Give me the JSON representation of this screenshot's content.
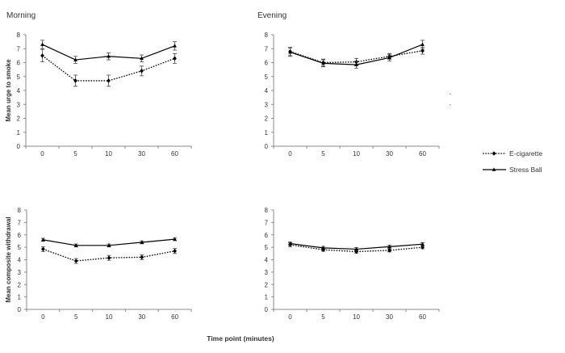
{
  "figure": {
    "xlabel": "Time point (minutes)"
  },
  "legend": {
    "items": [
      {
        "label": "E-cigarette",
        "style": "dotted",
        "marker": "diamond"
      },
      {
        "label": "Stress Ball",
        "style": "solid",
        "marker": "triangle"
      }
    ]
  },
  "colors": {
    "line": "#000000",
    "axis": "#8a8a8a",
    "text": "#333333"
  },
  "chart_data": [
    {
      "type": "line",
      "title": "Morning",
      "ylabel": "Mean urge to smoke",
      "ylim": [
        0,
        8
      ],
      "yticks": [
        0,
        1,
        2,
        3,
        4,
        5,
        6,
        7,
        8
      ],
      "categories": [
        "0",
        "5",
        "10",
        "30",
        "60"
      ],
      "series": [
        {
          "name": "E-cigarette",
          "values": [
            6.5,
            4.7,
            4.7,
            5.4,
            6.3
          ],
          "errors": [
            0.45,
            0.4,
            0.4,
            0.35,
            0.35
          ]
        },
        {
          "name": "Stress Ball",
          "values": [
            7.3,
            6.2,
            6.45,
            6.3,
            7.2
          ],
          "errors": [
            0.3,
            0.25,
            0.25,
            0.25,
            0.3
          ]
        }
      ]
    },
    {
      "type": "line",
      "title": "Evening",
      "ylabel": "",
      "ylim": [
        0,
        8
      ],
      "yticks": [
        0,
        1,
        2,
        3,
        4,
        5,
        6,
        7,
        8
      ],
      "categories": [
        "0",
        "5",
        "10",
        "30",
        "60"
      ],
      "series": [
        {
          "name": "E-cigarette",
          "values": [
            6.8,
            6.0,
            6.05,
            6.45,
            6.85
          ],
          "errors": [
            0.3,
            0.25,
            0.25,
            0.2,
            0.25
          ]
        },
        {
          "name": "Stress Ball",
          "values": [
            6.75,
            5.95,
            5.85,
            6.35,
            7.3
          ],
          "errors": [
            0.3,
            0.25,
            0.25,
            0.25,
            0.3
          ]
        }
      ]
    },
    {
      "type": "line",
      "title": "",
      "ylabel": "Mean composite withdrawal",
      "ylim": [
        0,
        8
      ],
      "yticks": [
        0,
        1,
        2,
        3,
        4,
        5,
        6,
        7,
        8
      ],
      "categories": [
        "0",
        "5",
        "10",
        "30",
        "60"
      ],
      "series": [
        {
          "name": "E-cigarette",
          "values": [
            4.85,
            3.9,
            4.15,
            4.2,
            4.7
          ],
          "errors": [
            0.2,
            0.2,
            0.2,
            0.2,
            0.2
          ]
        },
        {
          "name": "Stress Ball",
          "values": [
            5.6,
            5.15,
            5.15,
            5.4,
            5.65
          ],
          "errors": [
            0.12,
            0.12,
            0.12,
            0.12,
            0.12
          ]
        }
      ]
    },
    {
      "type": "line",
      "title": "",
      "ylabel": "",
      "ylim": [
        0,
        8
      ],
      "yticks": [
        0,
        1,
        2,
        3,
        4,
        5,
        6,
        7,
        8
      ],
      "categories": [
        "0",
        "5",
        "10",
        "30",
        "60"
      ],
      "series": [
        {
          "name": "E-cigarette",
          "values": [
            5.2,
            4.8,
            4.65,
            4.75,
            5.0
          ],
          "errors": [
            0.15,
            0.12,
            0.12,
            0.12,
            0.12
          ]
        },
        {
          "name": "Stress Ball",
          "values": [
            5.3,
            4.95,
            4.85,
            5.05,
            5.25
          ],
          "errors": [
            0.12,
            0.12,
            0.12,
            0.12,
            0.12
          ]
        }
      ]
    }
  ]
}
